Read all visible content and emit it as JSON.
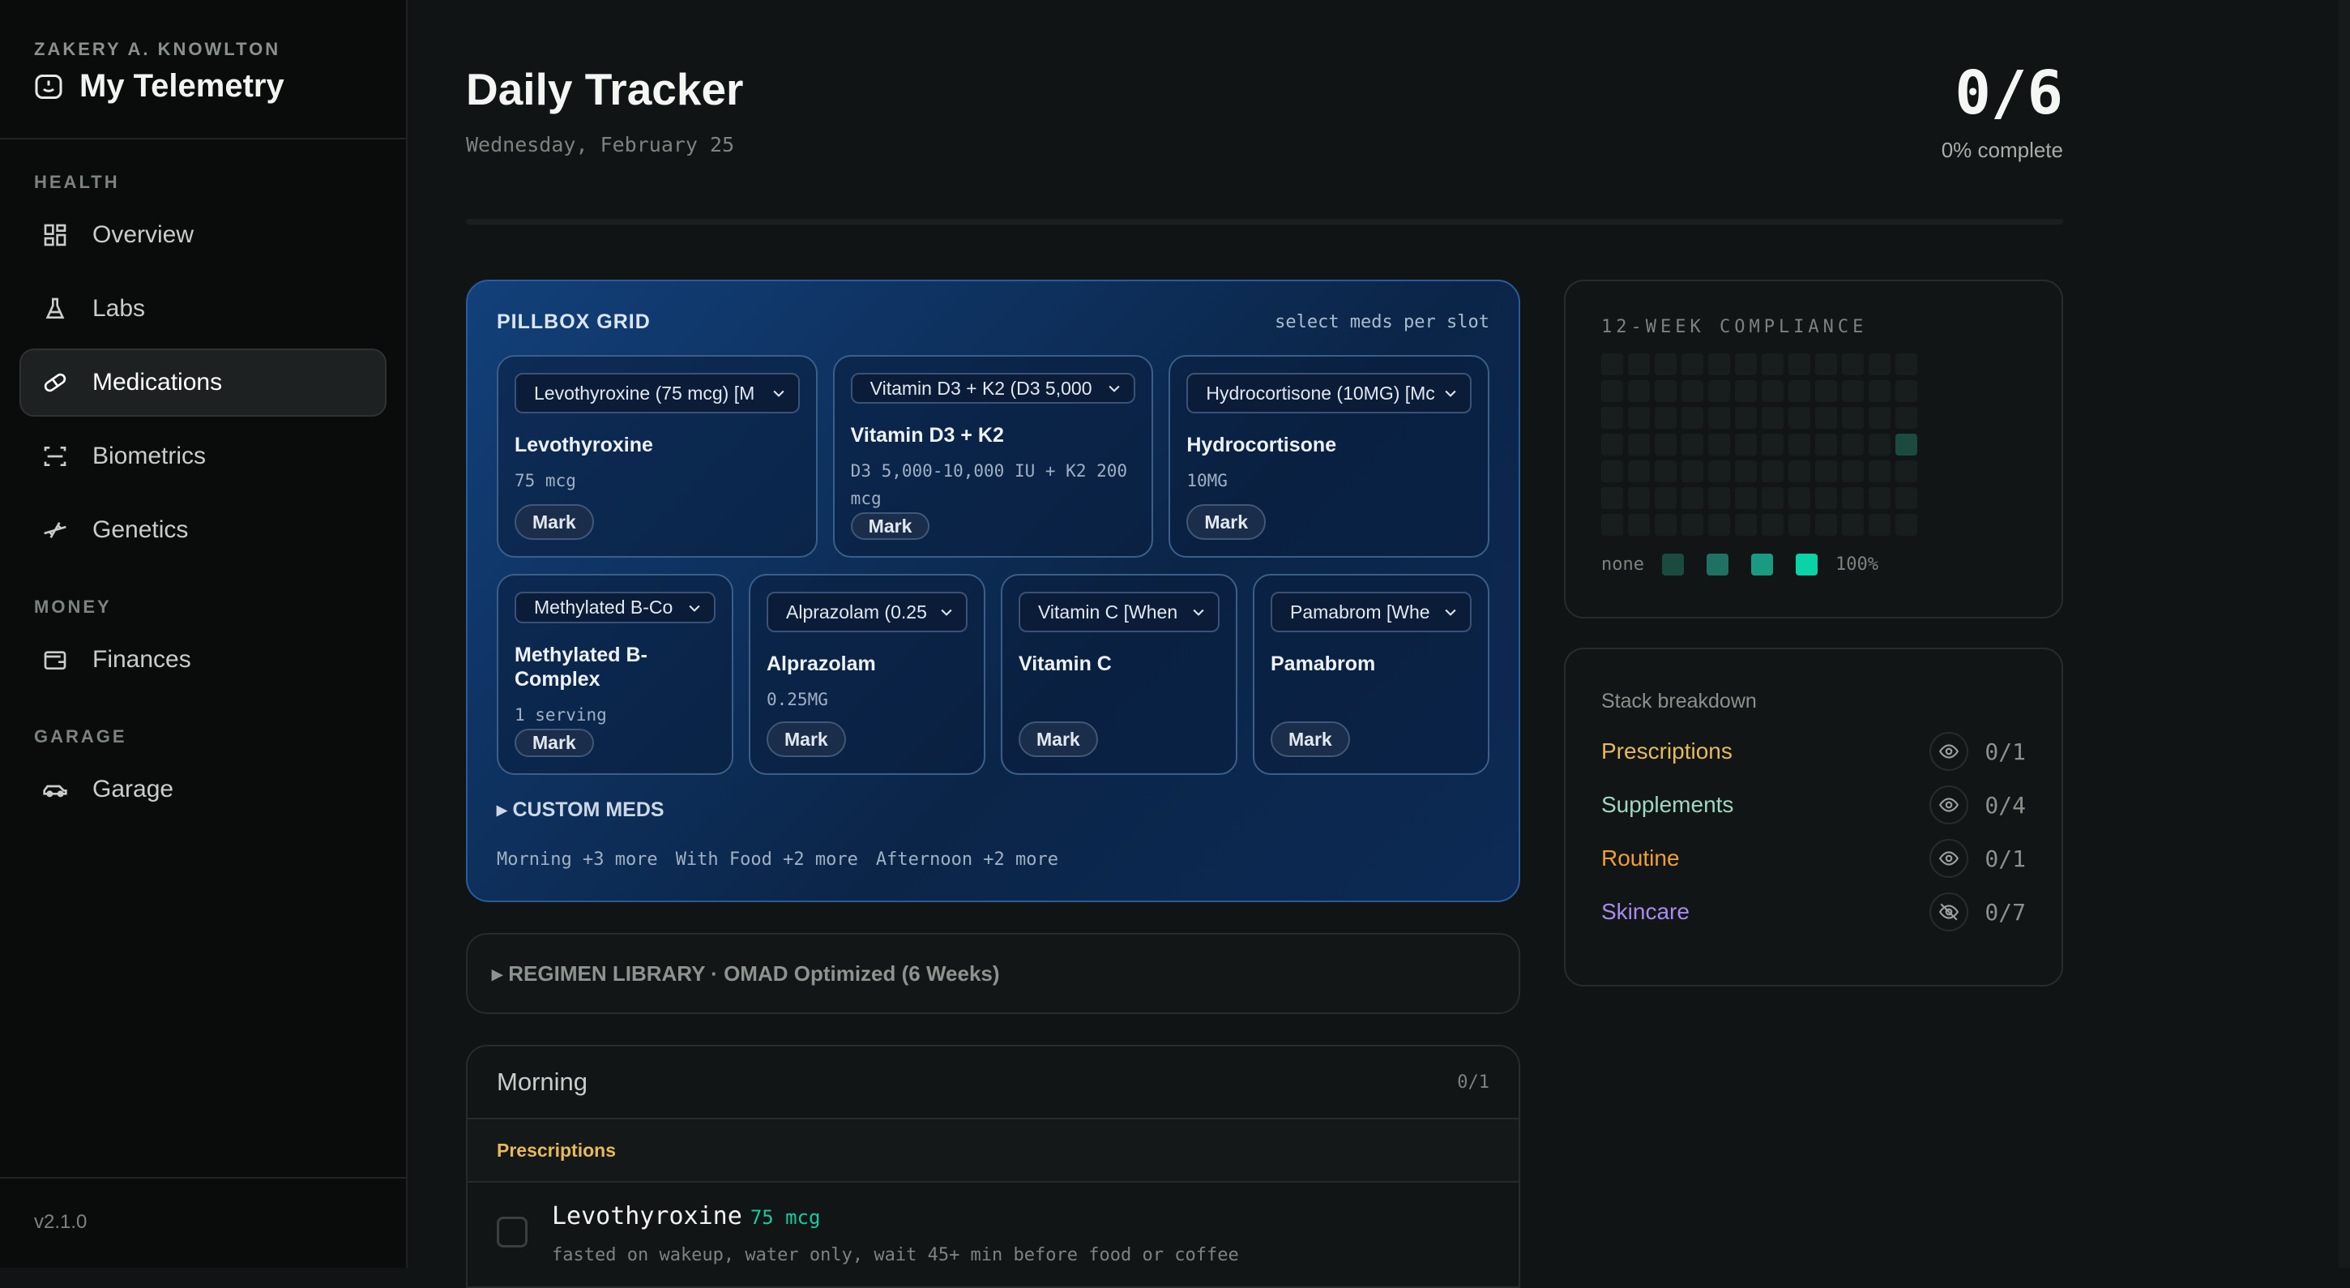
{
  "sidebar": {
    "owner": "ZAKERY A. KNOWLTON",
    "brand": "My Telemetry",
    "version": "v2.1.0",
    "sections": [
      {
        "label": "HEALTH"
      },
      {
        "label": "MONEY"
      },
      {
        "label": "GARAGE"
      }
    ],
    "items": [
      {
        "label": "Overview",
        "icon": "grid-icon"
      },
      {
        "label": "Labs",
        "icon": "flask-icon"
      },
      {
        "label": "Medications",
        "icon": "pill-icon",
        "active": true
      },
      {
        "label": "Biometrics",
        "icon": "scan-icon"
      },
      {
        "label": "Genetics",
        "icon": "dna-icon"
      },
      {
        "label": "Finances",
        "icon": "wallet-icon"
      },
      {
        "label": "Garage",
        "icon": "car-icon"
      }
    ]
  },
  "header": {
    "title": "Daily Tracker",
    "date": "Wednesday, February 25",
    "score": "0/6",
    "percent_label": "0% complete",
    "progress": 0
  },
  "pillbox": {
    "title": "PILLBOX GRID",
    "hint": "select meds per slot",
    "mark_label": "Mark",
    "slots": [
      {
        "select": "Levothyroxine (75 mcg) [M",
        "name": "Levothyroxine",
        "dose": "75 mcg"
      },
      {
        "select": "Vitamin D3 + K2 (D3 5,000",
        "name": "Vitamin D3 + K2",
        "dose": "D3 5,000-10,000 IU + K2 200 mcg"
      },
      {
        "select": "Hydrocortisone (10MG) [Mc",
        "name": "Hydrocortisone",
        "dose": "10MG"
      },
      {
        "select": "Methylated B-Co",
        "name": "Methylated B-Complex",
        "dose": "1 serving"
      },
      {
        "select": "Alprazolam (0.25",
        "name": "Alprazolam",
        "dose": "0.25MG"
      },
      {
        "select": "Vitamin C [When",
        "name": "Vitamin C",
        "dose": ""
      },
      {
        "select": "Pamabrom [Whe",
        "name": "Pamabrom",
        "dose": ""
      }
    ],
    "custom_label": "▸ CUSTOM MEDS",
    "chips": [
      "Morning +3 more",
      "With Food +2 more",
      "Afternoon +2 more"
    ]
  },
  "regimen": {
    "label": "▸ REGIMEN LIBRARY · OMAD Optimized (6 Weeks)"
  },
  "morning": {
    "title": "Morning",
    "count": "0/1",
    "category": "Prescriptions",
    "items": [
      {
        "name": "Levothyroxine",
        "dose": "75 mcg",
        "note": "fasted on wakeup, water only, wait 45+ min before food or coffee",
        "checked": false
      }
    ]
  },
  "compliance": {
    "title": "12-WEEK COMPLIANCE",
    "weeks": 12,
    "days": 7,
    "legend_low": "none",
    "legend_high": "100%",
    "legend_colors": [
      "#1b4a3e",
      "#1f7162",
      "#1a9a80",
      "#0ad3a8"
    ],
    "cells": [
      {
        "week": 12,
        "day": 4,
        "level": 1
      }
    ]
  },
  "stack": {
    "title": "Stack breakdown",
    "rows": [
      {
        "label": "Prescriptions",
        "count": "0/1",
        "color": "#e8b95c",
        "visible": true
      },
      {
        "label": "Supplements",
        "count": "0/4",
        "color": "#9fd8c0",
        "visible": true
      },
      {
        "label": "Routine",
        "count": "0/1",
        "color": "#f0a030",
        "visible": true
      },
      {
        "label": "Skincare",
        "count": "0/7",
        "color": "#a98af0",
        "visible": false
      }
    ]
  }
}
